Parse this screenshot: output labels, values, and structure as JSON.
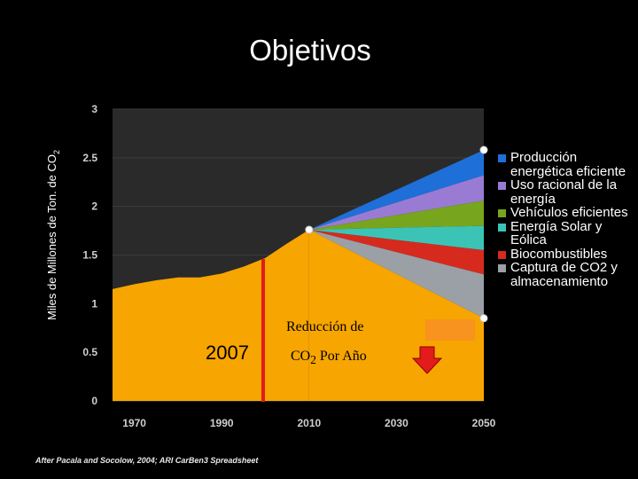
{
  "title": "Objetivos",
  "source": "After Pacala and Socolow, 2004; ARI CarBen3 Spreadsheet",
  "colors": {
    "background": "#000000",
    "plot_background": "#2a2a2a",
    "base": "#f7a500",
    "reduction_line": "#e31b1b",
    "arrow": "#e31b1b"
  },
  "annotations": {
    "year_label": "2007",
    "reduction_line1": "Reducción de",
    "reduction_line2": "CO",
    "reduction_sub": "2",
    "reduction_suffix": " Por Año",
    "arrow_icon": "down-arrow-icon"
  },
  "chart_data": {
    "type": "area",
    "ylabel": "Miles de Millones de Ton. de CO",
    "ylabel_sub": "2",
    "xlim": [
      1965,
      2050
    ],
    "ylim": [
      0,
      3
    ],
    "x_ticks": [
      "1970",
      "1990",
      "2010",
      "2030",
      "2050"
    ],
    "y_ticks": [
      "0",
      "0.5",
      "1",
      "1.5",
      "2",
      "2.5",
      "3"
    ],
    "grid": true,
    "legend_position": "right",
    "base_series": {
      "x": [
        1965,
        1970,
        1975,
        1980,
        1985,
        1990,
        1995,
        2000,
        2005,
        2010
      ],
      "y": [
        1.15,
        1.2,
        1.24,
        1.27,
        1.27,
        1.31,
        1.38,
        1.47,
        1.62,
        1.76
      ]
    },
    "projection": {
      "x": [
        2010,
        2050
      ],
      "baseline_end": 0.85,
      "markers": [
        {
          "x": 2010,
          "y": 1.76
        },
        {
          "x": 2050,
          "y": 2.58
        },
        {
          "x": 2050,
          "y": 0.85
        }
      ],
      "series": [
        {
          "name": "Producción\nenergética eficiente",
          "color": "#1e6fd8",
          "end_value": 2.58
        },
        {
          "name": "Uso racional de la\nenergía",
          "color": "#9a7bd4",
          "end_value": 2.32
        },
        {
          "name": "Vehículos eficientes",
          "color": "#78a51e",
          "end_value": 2.06
        },
        {
          "name": "Energía Solar y\nEólica",
          "color": "#3bc4b6",
          "end_value": 1.8
        },
        {
          "name": "Biocombustibles",
          "color": "#d62a1e",
          "end_value": 1.55
        },
        {
          "name": "Captura de CO2 y\nalmacenamiento",
          "color": "#9aa0a6",
          "end_value": 1.3
        }
      ]
    }
  }
}
